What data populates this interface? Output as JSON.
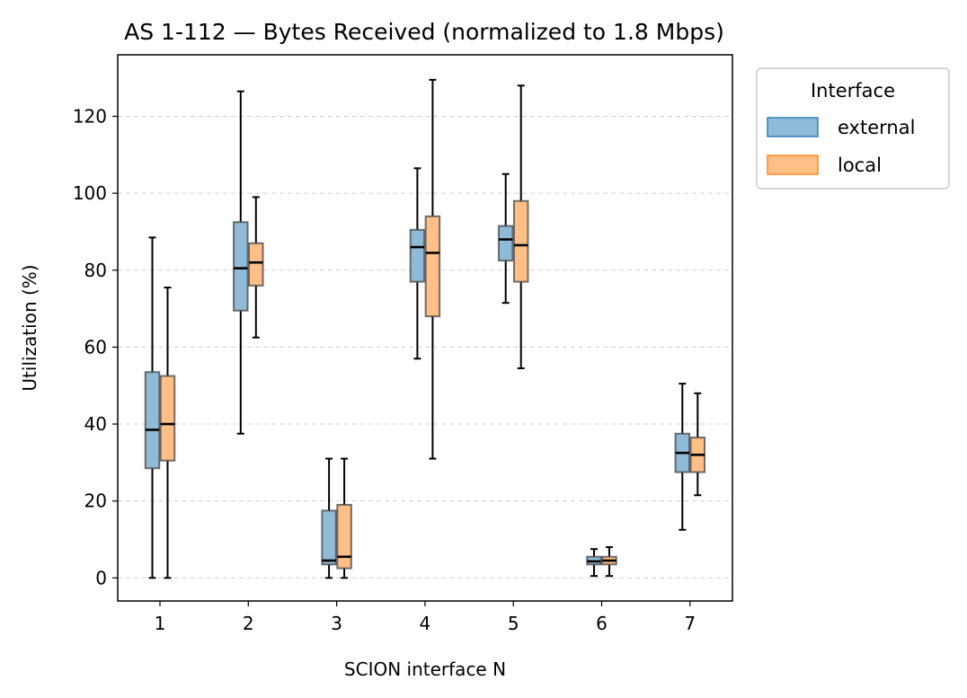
{
  "chart_data": {
    "type": "box",
    "title": "AS 1-112 — Bytes Received (normalized to 1.8 Mbps)",
    "xlabel": "SCION interface N",
    "ylabel": "Utilization (%)",
    "categories": [
      "1",
      "2",
      "3",
      "4",
      "5",
      "6",
      "7"
    ],
    "ylim": [
      -6,
      136
    ],
    "yticks": [
      0,
      20,
      40,
      60,
      80,
      100,
      120
    ],
    "grid": "y-dashed",
    "legend": {
      "title": "Interface",
      "placement": "outside-top-right"
    },
    "series": [
      {
        "name": "external",
        "color": "#1f77b4",
        "boxes": [
          {
            "whisker_low": 0,
            "q1": 28.5,
            "median": 38.5,
            "q3": 53.5,
            "whisker_high": 88.5
          },
          {
            "whisker_low": 37.5,
            "q1": 69.5,
            "median": 80.5,
            "q3": 92.5,
            "whisker_high": 126.5
          },
          {
            "whisker_low": 0,
            "q1": 3.5,
            "median": 4.5,
            "q3": 17.5,
            "whisker_high": 31
          },
          {
            "whisker_low": 57,
            "q1": 77,
            "median": 86,
            "q3": 90.5,
            "whisker_high": 106.5
          },
          {
            "whisker_low": 71.5,
            "q1": 82.5,
            "median": 88,
            "q3": 91.5,
            "whisker_high": 105
          },
          {
            "whisker_low": 0.5,
            "q1": 3.5,
            "median": 4.3,
            "q3": 5.5,
            "whisker_high": 7.5
          },
          {
            "whisker_low": 12.5,
            "q1": 27.5,
            "median": 32.5,
            "q3": 37.5,
            "whisker_high": 50.5
          }
        ]
      },
      {
        "name": "local",
        "color": "#ff7f0e",
        "boxes": [
          {
            "whisker_low": 0,
            "q1": 30.5,
            "median": 40,
            "q3": 52.5,
            "whisker_high": 75.5
          },
          {
            "whisker_low": 62.5,
            "q1": 76,
            "median": 82,
            "q3": 87,
            "whisker_high": 99
          },
          {
            "whisker_low": 0,
            "q1": 2.5,
            "median": 5.5,
            "q3": 19,
            "whisker_high": 31
          },
          {
            "whisker_low": 31,
            "q1": 68,
            "median": 84.5,
            "q3": 94,
            "whisker_high": 129.5
          },
          {
            "whisker_low": 54.5,
            "q1": 77,
            "median": 86.5,
            "q3": 98,
            "whisker_high": 128
          },
          {
            "whisker_low": 0.5,
            "q1": 3.5,
            "median": 4.5,
            "q3": 5.5,
            "whisker_high": 8
          },
          {
            "whisker_low": 21.5,
            "q1": 27.5,
            "median": 32,
            "q3": 36.5,
            "whisker_high": 48
          }
        ]
      }
    ]
  }
}
